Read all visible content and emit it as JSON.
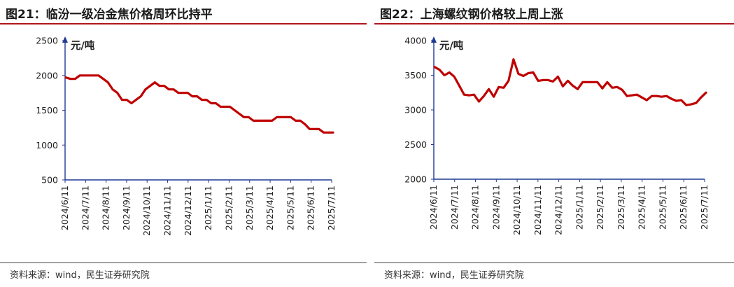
{
  "left": {
    "title": "图21：临汾一级冶金焦价格周环比持平",
    "source": "资料来源：wind，民生证券研究院"
  },
  "right": {
    "title": "图22：上海螺纹钢价格较上周上涨",
    "source": "资料来源：wind，民生证券研究院"
  },
  "colors": {
    "series": "#c00000",
    "axis": "#1f3a93",
    "title_rule": "#b0171f"
  },
  "chart_data": [
    {
      "type": "line",
      "title": "图21：临汾一级冶金焦价格周环比持平",
      "ylabel": "元/吨",
      "xlabel": "",
      "ylim": [
        500,
        2500
      ],
      "yticks": [
        500,
        1000,
        1500,
        2000,
        2500
      ],
      "xticks": [
        "2024/6/11",
        "2024/7/11",
        "2024/8/11",
        "2024/9/11",
        "2024/10/11",
        "2024/11/11",
        "2024/12/11",
        "2025/1/11",
        "2025/2/11",
        "2025/3/11",
        "2025/4/11",
        "2025/5/11",
        "2025/6/11",
        "2025/7/11"
      ],
      "grid": false,
      "series": [
        {
          "values": [
            1970,
            1950,
            1950,
            2000,
            2000,
            2000,
            2000,
            2000,
            1950,
            1900,
            1800,
            1750,
            1650,
            1650,
            1600,
            1650,
            1700,
            1800,
            1850,
            1900,
            1850,
            1850,
            1800,
            1800,
            1750,
            1750,
            1750,
            1700,
            1700,
            1650,
            1650,
            1600,
            1600,
            1550,
            1550,
            1550,
            1500,
            1450,
            1400,
            1400,
            1350,
            1350,
            1350,
            1350,
            1350,
            1400,
            1400,
            1400,
            1400,
            1350,
            1350,
            1300,
            1230,
            1230,
            1230,
            1180,
            1180,
            1180
          ]
        }
      ]
    },
    {
      "type": "line",
      "title": "图22：上海螺纹钢价格较上周上涨",
      "ylabel": "元/吨",
      "xlabel": "",
      "ylim": [
        2000,
        4000
      ],
      "yticks": [
        2000,
        2500,
        3000,
        3500,
        4000
      ],
      "xticks": [
        "2024/6/11",
        "2024/7/11",
        "2024/8/11",
        "2024/9/11",
        "2024/10/11",
        "2024/11/11",
        "2024/12/11",
        "2025/1/11",
        "2025/2/11",
        "2025/3/11",
        "2025/4/11",
        "2025/5/11",
        "2025/6/11",
        "2025/7/11"
      ],
      "grid": false,
      "series": [
        {
          "values": [
            3620,
            3580,
            3500,
            3540,
            3480,
            3350,
            3220,
            3210,
            3220,
            3120,
            3200,
            3300,
            3190,
            3330,
            3320,
            3420,
            3730,
            3520,
            3490,
            3530,
            3540,
            3420,
            3430,
            3430,
            3410,
            3480,
            3340,
            3420,
            3350,
            3300,
            3400,
            3400,
            3400,
            3400,
            3310,
            3400,
            3320,
            3330,
            3290,
            3200,
            3210,
            3220,
            3180,
            3140,
            3200,
            3200,
            3190,
            3200,
            3160,
            3130,
            3140,
            3070,
            3080,
            3100,
            3180,
            3250
          ]
        }
      ]
    }
  ]
}
